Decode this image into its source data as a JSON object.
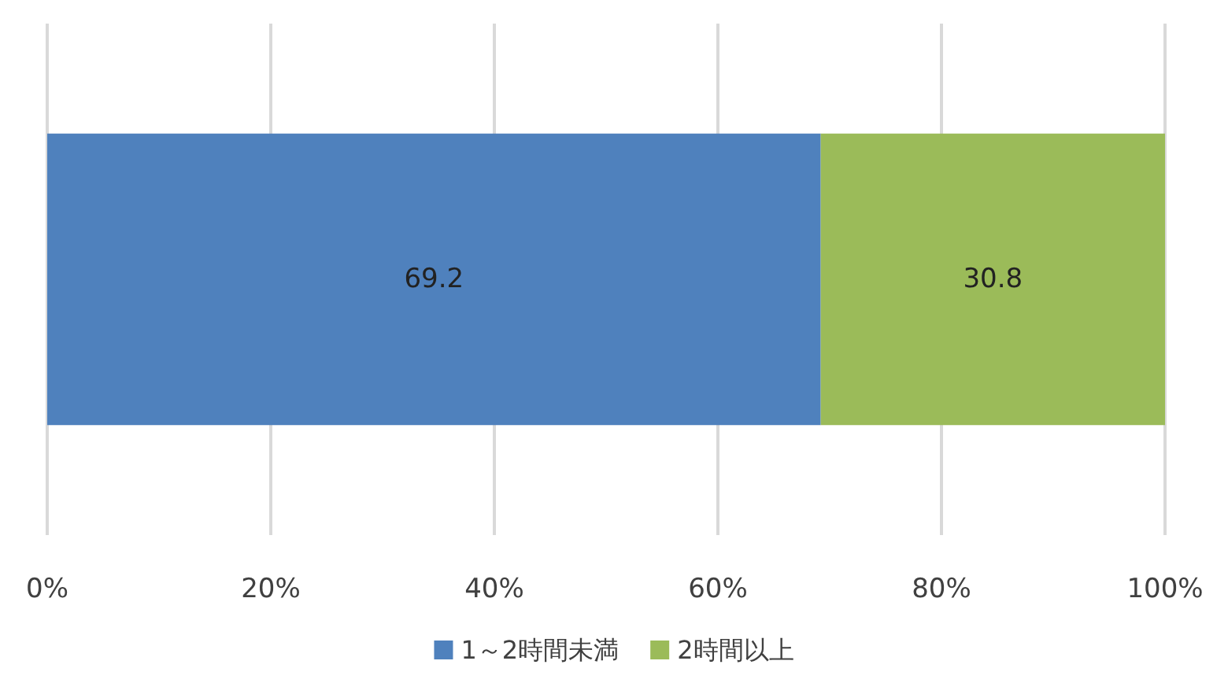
{
  "chart_data": {
    "type": "bar",
    "orientation": "horizontal",
    "stacked": true,
    "categories": [
      null
    ],
    "series": [
      {
        "name": "1～2時間未満",
        "color": "#4f81bd",
        "values": [
          69.2
        ]
      },
      {
        "name": "2時間以上",
        "color": "#9bbb59",
        "values": [
          30.8
        ]
      }
    ],
    "xlim": [
      0,
      100
    ],
    "xticks": [
      {
        "value": 0,
        "label": "0%"
      },
      {
        "value": 20,
        "label": "20%"
      },
      {
        "value": 40,
        "label": "40%"
      },
      {
        "value": 60,
        "label": "60%"
      },
      {
        "value": 80,
        "label": "80%"
      },
      {
        "value": 100,
        "label": "100%"
      }
    ],
    "grid": "x",
    "legend": "bottom",
    "data_labels": true
  }
}
